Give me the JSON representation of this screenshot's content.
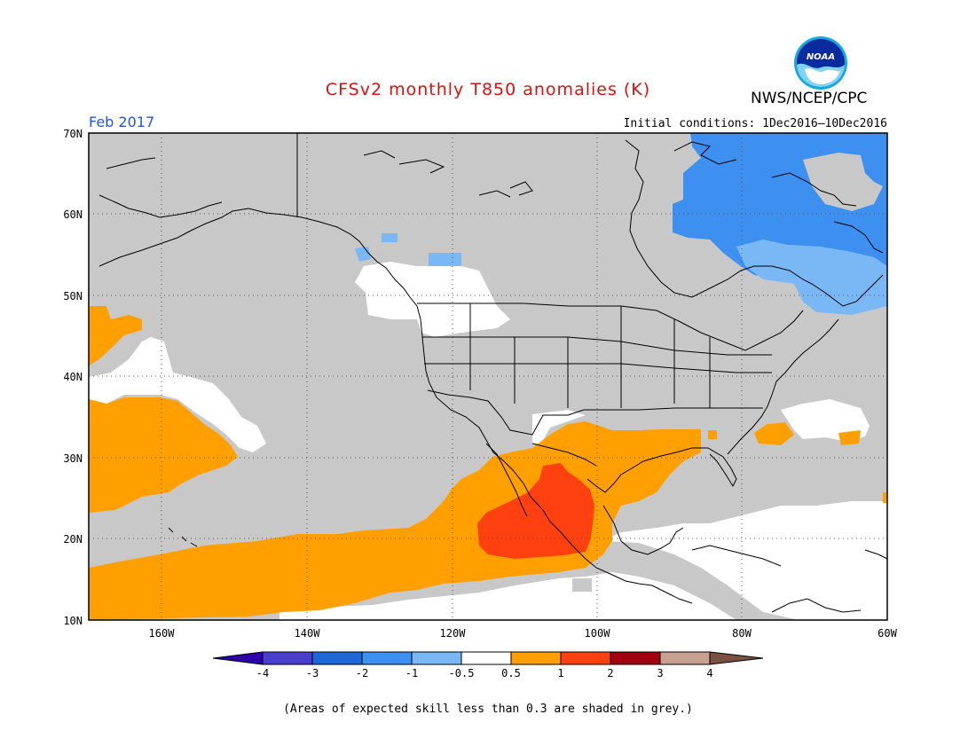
{
  "header": {
    "title": "CFSv2 monthly T850 anomalies (K)",
    "org": "NWS/NCEP/CPC",
    "logo_text": "NOAA",
    "valid_month": "Feb 2017",
    "initial_conditions": "Initial conditions: 1Dec2016–10Dec2016"
  },
  "map": {
    "lon_range": [
      -170,
      -60
    ],
    "lat_range": [
      10,
      70
    ],
    "lat_labels": [
      "70N",
      "60N",
      "50N",
      "40N",
      "30N",
      "20N",
      "10N"
    ],
    "lon_labels": [
      "160W",
      "140W",
      "120W",
      "100W",
      "80W",
      "60W"
    ],
    "low_skill_color": "#c8c8c8"
  },
  "colorbar": {
    "labels": [
      "-4",
      "-3",
      "-2",
      "-1",
      "-0.5",
      "0.5",
      "1",
      "2",
      "3",
      "4"
    ],
    "colors": [
      "#2c00aa",
      "#4a3fcc",
      "#1f66d6",
      "#3d8ff0",
      "#7ab8f5",
      "#ffffff",
      "#ff9f00",
      "#ff4010",
      "#a00010",
      "#c8a090",
      "#7a5040"
    ]
  },
  "footnote": "(Areas of expected skill less than 0.3 are shaded in grey.)"
}
